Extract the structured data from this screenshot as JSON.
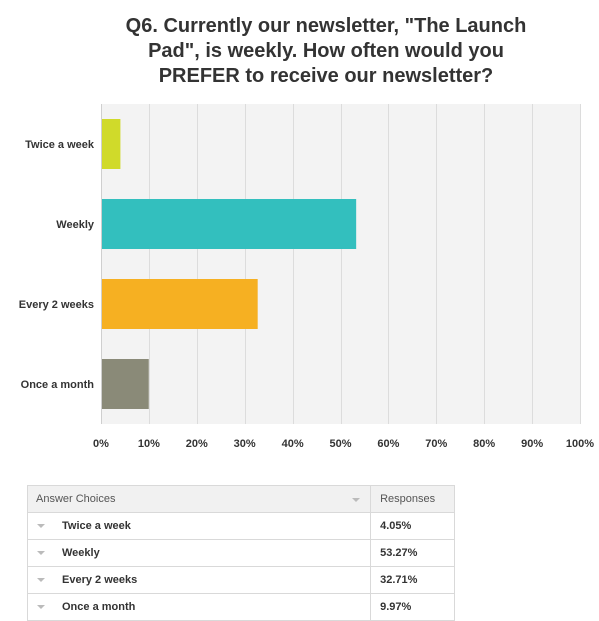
{
  "title_lines": [
    "Q6. Currently our newsletter, \"The Launch",
    "Pad\", is weekly. How often would you",
    "PREFER to receive our newsletter?"
  ],
  "colors": {
    "bar_colors": [
      "#d0da2a",
      "#33bfbe",
      "#f6b022",
      "#8a8a78"
    ],
    "plot_bg": "#f3f3f3",
    "grid": "#dcdcdc"
  },
  "chart_data": {
    "type": "bar",
    "orientation": "horizontal",
    "categories": [
      "Twice a week",
      "Weekly",
      "Every 2 weeks",
      "Once a month"
    ],
    "values": [
      4.05,
      53.27,
      32.71,
      9.97
    ],
    "title": "Q6. Currently our newsletter, \"The Launch Pad\", is weekly. How often would you PREFER to receive our newsletter?",
    "xlim": [
      0,
      100
    ],
    "xtick_labels": [
      "0%",
      "10%",
      "20%",
      "30%",
      "40%",
      "50%",
      "60%",
      "70%",
      "80%",
      "90%",
      "100%"
    ],
    "grid": true
  },
  "table": {
    "headers": [
      "Answer Choices",
      "Responses"
    ],
    "rows": [
      {
        "choice": "Twice a week",
        "response": "4.05%"
      },
      {
        "choice": "Weekly",
        "response": "53.27%"
      },
      {
        "choice": "Every 2 weeks",
        "response": "32.71%"
      },
      {
        "choice": "Once a month",
        "response": "9.97%"
      }
    ]
  }
}
